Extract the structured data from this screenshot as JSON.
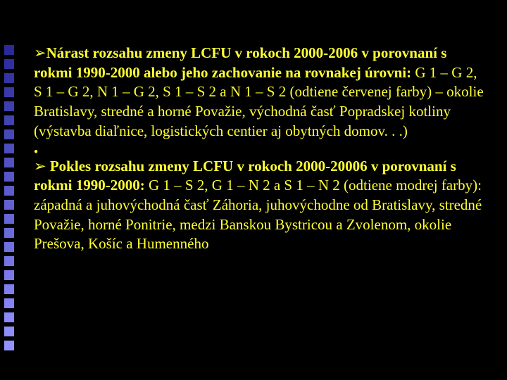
{
  "decor": {
    "count": 22,
    "colors": [
      "#2a2a9a",
      "#2f2f9f",
      "#3434a4",
      "#3939a9",
      "#3e3eae",
      "#4343b3",
      "#4848b8",
      "#4d4dbd",
      "#5252c2",
      "#5757c7",
      "#5c5ccc",
      "#6161d1",
      "#6666d6",
      "#6b6bdb",
      "#7070e0",
      "#7575e5",
      "#7a7aea",
      "#7f7fef",
      "#8484f4",
      "#8989f9",
      "#8e8efc",
      "#9393ff"
    ]
  },
  "para1": {
    "arrow": "➢",
    "bold": "Nárast rozsahu zmeny LCFU v rokoch 2000-2006 v porovnaní s rokmi 1990-2000 alebo jeho zachovanie na rovnakej  úrovni:",
    "rest": " G 1 – G 2, S 1 – G 2, N 1 – G 2, S 1 – S 2 a N 1 – S 2 (odtiene červenej farby) – okolie Bratislavy, stredné a horné Považie, východná časť Popradskej kotliny (výstavba diaľnice, logistických centier aj obytných domov. . .)"
  },
  "dot": "●",
  "para2": {
    "arrow": "➢",
    "bold": " Pokles rozsahu zmeny LCFU v rokoch 2000-20006 v porovnaní s rokmi 1990-2000:",
    "rest": " G 1 – S 2, G 1 – N 2 a S 1 – N 2 (odtiene modrej farby): západná a juhovýchodná časť Záhoria, juhovýchodne od Bratislavy, stredné Považie, horné Ponitrie, medzi Banskou Bystricou a Zvolenom, okolie Prešova, Košíc a Humenného"
  }
}
